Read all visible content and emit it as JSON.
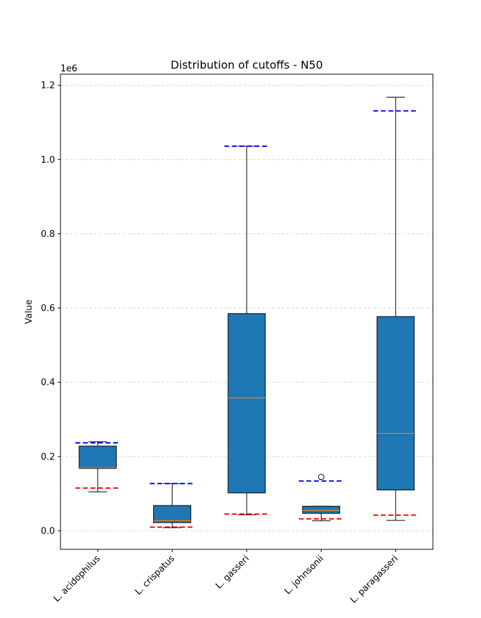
{
  "chart_data": {
    "type": "box",
    "title": "Distribution of cutoffs - N50",
    "xlabel": "",
    "ylabel": "Value",
    "y_scale_label": "1e6",
    "ylim": [
      -50000,
      1230000
    ],
    "y_ticks": [
      0,
      200000,
      400000,
      600000,
      800000,
      1000000,
      1200000
    ],
    "y_tick_labels": [
      "0.0",
      "0.2",
      "0.4",
      "0.6",
      "0.8",
      "1.0",
      "1.2"
    ],
    "grid": "horizontal dashed",
    "categories": [
      "L. acidophilus",
      "L. crispatus",
      "L. gasseri",
      "L. johnsonii",
      "L. paragasseri"
    ],
    "boxes": [
      {
        "whisker_low": 105000,
        "q1": 168000,
        "median": 170000,
        "q3": 228000,
        "whisker_high": 240000,
        "outliers": []
      },
      {
        "whisker_low": 8000,
        "q1": 22000,
        "median": 27000,
        "q3": 68000,
        "whisker_high": 127000,
        "outliers": []
      },
      {
        "whisker_low": 43000,
        "q1": 102000,
        "median": 358000,
        "q3": 585000,
        "whisker_high": 1036000,
        "outliers": []
      },
      {
        "whisker_low": 27000,
        "q1": 47000,
        "median": 55000,
        "q3": 66000,
        "whisker_high": 66000,
        "outliers": [
          145000
        ]
      },
      {
        "whisker_low": 28000,
        "q1": 110000,
        "median": 262000,
        "q3": 577000,
        "whisker_high": 1168000,
        "outliers": []
      }
    ],
    "reference_lines": {
      "upper": {
        "color": "#0000ff",
        "values": [
          237000,
          127000,
          1036000,
          134000,
          1131000
        ]
      },
      "lower": {
        "color": "#ff0000",
        "values": [
          115000,
          10000,
          45000,
          32000,
          42000
        ]
      }
    },
    "colors": {
      "box_fill": "#1f77b4",
      "median": "#ff7f0e",
      "grid": "#cccccc"
    }
  }
}
